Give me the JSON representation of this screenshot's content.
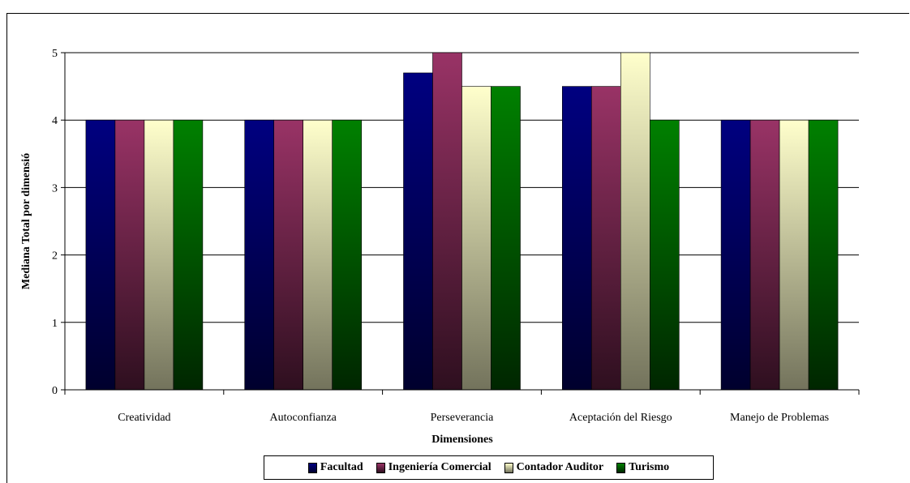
{
  "chart_data": {
    "type": "bar",
    "xlabel": "Dimensiones",
    "ylabel": "Mediana Total por dimensió",
    "categories": [
      "Creatividad",
      "Autoconfianza",
      "Perseverancia",
      "Aceptación del Riesgo",
      "Manejo de Problemas"
    ],
    "series": [
      {
        "name": "Facultad",
        "values": [
          4,
          4,
          4.7,
          4.5,
          4
        ],
        "color": "#000080"
      },
      {
        "name": "Ingeniería Comercial",
        "values": [
          4,
          4,
          5,
          4.5,
          4
        ],
        "color": "#993366"
      },
      {
        "name": "Contador Auditor",
        "values": [
          4,
          4,
          4.5,
          5,
          4
        ],
        "color": "#FFFFCC"
      },
      {
        "name": "Turismo",
        "values": [
          4,
          4,
          4.5,
          4,
          4
        ],
        "color": "#008000"
      }
    ],
    "ylim": [
      0,
      5
    ],
    "yticks": [
      0,
      1,
      2,
      3,
      4,
      5
    ],
    "grid": true,
    "legend_position": "bottom"
  }
}
